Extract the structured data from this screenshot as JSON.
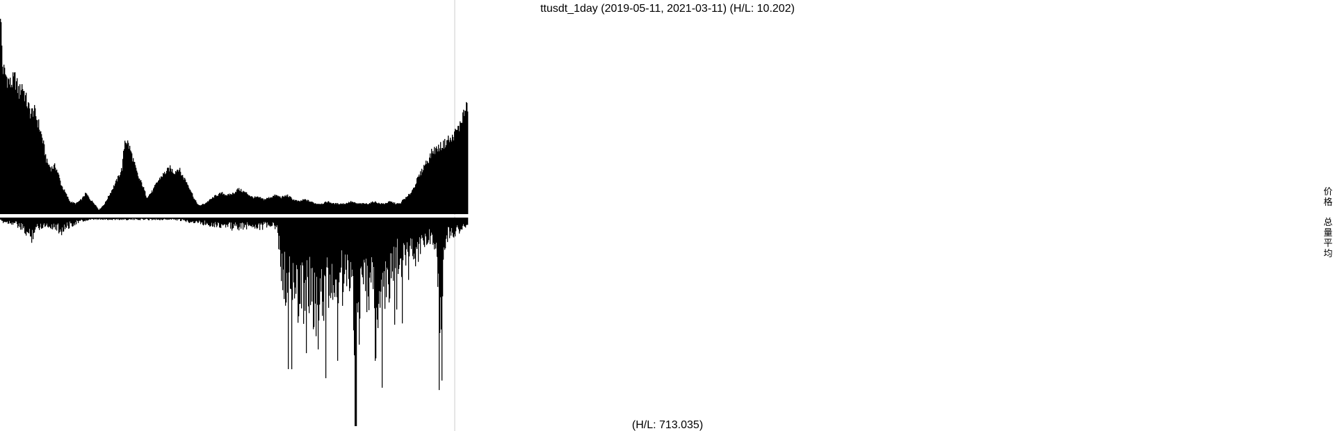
{
  "chart_data": {
    "type": "bar",
    "title": "ttusdt_1day (2019-05-11, 2021-03-11) (H/L: 10.202)",
    "x_start": "2019-05-11",
    "x_end": "2021-03-11",
    "price_panel": {
      "label": "价格",
      "hl_ratio": 10.202,
      "normalized_range": [
        0,
        1
      ],
      "anchors": [
        [
          0,
          0.98
        ],
        [
          3,
          0.7
        ],
        [
          8,
          0.66
        ],
        [
          14,
          0.62
        ],
        [
          20,
          0.65
        ],
        [
          26,
          0.58
        ],
        [
          30,
          0.62
        ],
        [
          36,
          0.54
        ],
        [
          42,
          0.48
        ],
        [
          46,
          0.5
        ],
        [
          52,
          0.44
        ],
        [
          58,
          0.36
        ],
        [
          64,
          0.25
        ],
        [
          70,
          0.22
        ],
        [
          76,
          0.23
        ],
        [
          80,
          0.19
        ],
        [
          84,
          0.14
        ],
        [
          90,
          0.1
        ],
        [
          96,
          0.06
        ],
        [
          104,
          0.05
        ],
        [
          112,
          0.07
        ],
        [
          118,
          0.1
        ],
        [
          124,
          0.07
        ],
        [
          130,
          0.05
        ],
        [
          136,
          0.02
        ],
        [
          144,
          0.05
        ],
        [
          150,
          0.09
        ],
        [
          156,
          0.13
        ],
        [
          162,
          0.17
        ],
        [
          168,
          0.22
        ],
        [
          172,
          0.36
        ],
        [
          176,
          0.34
        ],
        [
          180,
          0.3
        ],
        [
          184,
          0.25
        ],
        [
          190,
          0.18
        ],
        [
          196,
          0.14
        ],
        [
          202,
          0.08
        ],
        [
          210,
          0.11
        ],
        [
          216,
          0.15
        ],
        [
          222,
          0.18
        ],
        [
          228,
          0.2
        ],
        [
          234,
          0.22
        ],
        [
          240,
          0.2
        ],
        [
          246,
          0.22
        ],
        [
          250,
          0.19
        ],
        [
          256,
          0.16
        ],
        [
          262,
          0.12
        ],
        [
          268,
          0.07
        ],
        [
          274,
          0.04
        ],
        [
          282,
          0.05
        ],
        [
          290,
          0.07
        ],
        [
          298,
          0.09
        ],
        [
          306,
          0.1
        ],
        [
          314,
          0.09
        ],
        [
          322,
          0.1
        ],
        [
          328,
          0.12
        ],
        [
          334,
          0.11
        ],
        [
          340,
          0.1
        ],
        [
          348,
          0.08
        ],
        [
          356,
          0.08
        ],
        [
          364,
          0.07
        ],
        [
          372,
          0.08
        ],
        [
          380,
          0.09
        ],
        [
          388,
          0.08
        ],
        [
          396,
          0.09
        ],
        [
          404,
          0.07
        ],
        [
          412,
          0.06
        ],
        [
          420,
          0.07
        ],
        [
          428,
          0.06
        ],
        [
          436,
          0.05
        ],
        [
          444,
          0.05
        ],
        [
          452,
          0.06
        ],
        [
          460,
          0.05
        ],
        [
          468,
          0.05
        ],
        [
          476,
          0.05
        ],
        [
          484,
          0.06
        ],
        [
          492,
          0.05
        ],
        [
          500,
          0.05
        ],
        [
          508,
          0.05
        ],
        [
          516,
          0.06
        ],
        [
          524,
          0.05
        ],
        [
          530,
          0.05
        ],
        [
          538,
          0.06
        ],
        [
          546,
          0.05
        ],
        [
          552,
          0.05
        ],
        [
          556,
          0.07
        ],
        [
          561,
          0.08
        ],
        [
          566,
          0.1
        ],
        [
          571,
          0.13
        ],
        [
          576,
          0.17
        ],
        [
          581,
          0.2
        ],
        [
          586,
          0.24
        ],
        [
          591,
          0.26
        ],
        [
          596,
          0.3
        ],
        [
          601,
          0.31
        ],
        [
          606,
          0.32
        ],
        [
          610,
          0.33
        ],
        [
          614,
          0.34
        ],
        [
          618,
          0.36
        ],
        [
          622,
          0.35
        ],
        [
          626,
          0.38
        ],
        [
          630,
          0.4
        ],
        [
          634,
          0.42
        ],
        [
          638,
          0.47
        ],
        [
          645,
          0.52
        ]
      ]
    },
    "volume_panel": {
      "label": "总量平均",
      "hl_ratio": 713.035,
      "hl_text": "(H/L: 713.035)",
      "normalized_range": [
        0,
        1
      ],
      "anchors": [
        [
          0,
          0.02
        ],
        [
          20,
          0.03
        ],
        [
          36,
          0.08
        ],
        [
          42,
          0.11
        ],
        [
          48,
          0.06
        ],
        [
          60,
          0.04
        ],
        [
          76,
          0.05
        ],
        [
          84,
          0.07
        ],
        [
          96,
          0.04
        ],
        [
          110,
          0.02
        ],
        [
          130,
          0.01
        ],
        [
          160,
          0.01
        ],
        [
          200,
          0.01
        ],
        [
          240,
          0.01
        ],
        [
          260,
          0.02
        ],
        [
          280,
          0.03
        ],
        [
          300,
          0.04
        ],
        [
          320,
          0.05
        ],
        [
          336,
          0.05
        ],
        [
          348,
          0.04
        ],
        [
          358,
          0.05
        ],
        [
          372,
          0.04
        ],
        [
          382,
          0.06
        ],
        [
          388,
          0.28
        ],
        [
          394,
          0.36
        ],
        [
          400,
          0.4
        ],
        [
          405,
          0.36
        ],
        [
          410,
          0.42
        ],
        [
          416,
          0.46
        ],
        [
          422,
          0.34
        ],
        [
          428,
          0.38
        ],
        [
          434,
          0.48
        ],
        [
          438,
          0.62
        ],
        [
          444,
          0.44
        ],
        [
          450,
          0.4
        ],
        [
          456,
          0.36
        ],
        [
          462,
          0.42
        ],
        [
          468,
          0.32
        ],
        [
          474,
          0.36
        ],
        [
          480,
          0.3
        ],
        [
          486,
          0.28
        ],
        [
          490,
          0.98
        ],
        [
          496,
          0.44
        ],
        [
          502,
          0.36
        ],
        [
          508,
          0.4
        ],
        [
          514,
          0.34
        ],
        [
          518,
          0.66
        ],
        [
          524,
          0.4
        ],
        [
          530,
          0.46
        ],
        [
          536,
          0.34
        ],
        [
          542,
          0.3
        ],
        [
          548,
          0.22
        ],
        [
          554,
          0.28
        ],
        [
          560,
          0.18
        ],
        [
          566,
          0.14
        ],
        [
          572,
          0.22
        ],
        [
          578,
          0.18
        ],
        [
          584,
          0.12
        ],
        [
          590,
          0.1
        ],
        [
          596,
          0.14
        ],
        [
          602,
          0.12
        ],
        [
          606,
          0.76
        ],
        [
          612,
          0.16
        ],
        [
          618,
          0.1
        ],
        [
          626,
          0.08
        ],
        [
          634,
          0.06
        ],
        [
          640,
          0.05
        ],
        [
          645,
          0.04
        ]
      ]
    },
    "legend": {
      "label_price": "价格",
      "label_volume": "总量平均",
      "placement": "right-middle"
    },
    "grid": false,
    "bar_color": "#000000",
    "marker_line_color": "#cccccc"
  }
}
